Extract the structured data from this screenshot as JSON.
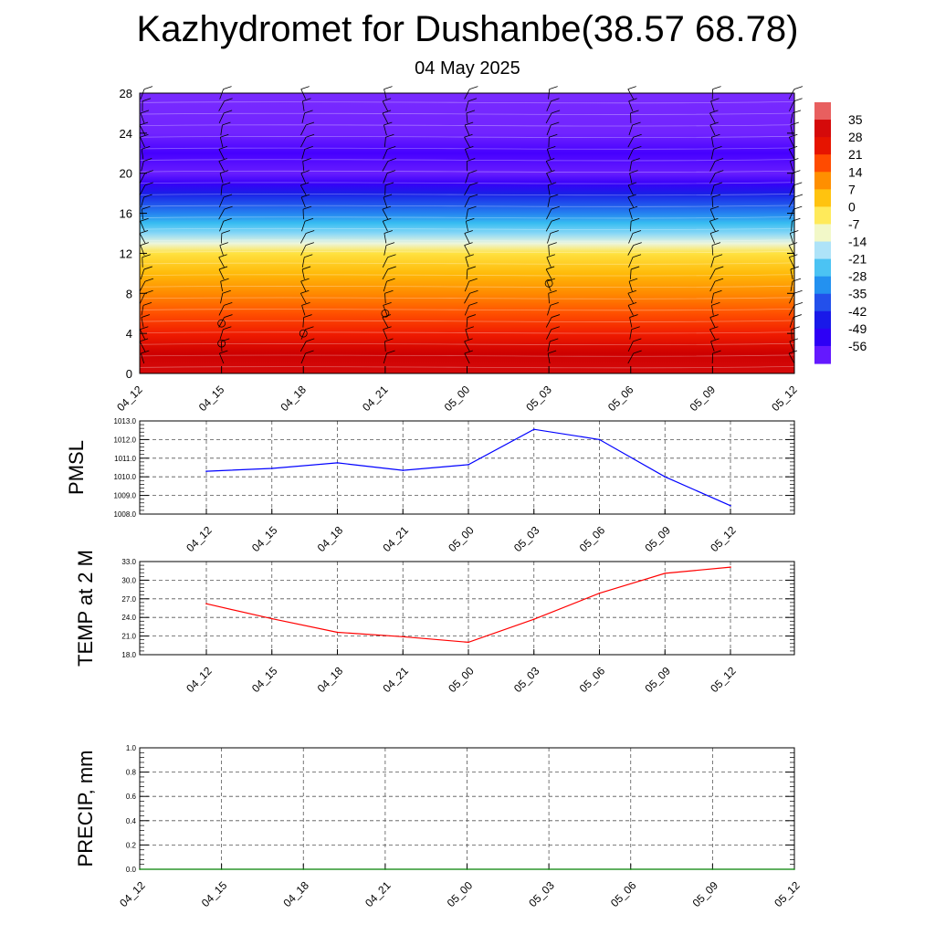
{
  "header": {
    "title": "Kazhydromet for Dushanbe(38.57 68.78)",
    "date": "04 May 2025"
  },
  "chart_data": [
    {
      "type": "heatmap",
      "title": "",
      "xlabel": "",
      "ylabel": "",
      "x_tick_labels": [
        "04_12",
        "04_15",
        "04_18",
        "04_21",
        "05_00",
        "05_03",
        "05_06",
        "05_09",
        "05_12"
      ],
      "y_ticks": [
        0,
        4,
        8,
        12,
        16,
        20,
        24,
        28
      ],
      "ylim": [
        0,
        28
      ],
      "colorbar": {
        "labels": [
          "35",
          "28",
          "21",
          "14",
          "7",
          "0",
          "-7",
          "-14",
          "-21",
          "-28",
          "-35",
          "-42",
          "-49",
          "-56"
        ],
        "min": -63,
        "max": 42
      },
      "temperature_profile": [
        {
          "level": 0,
          "value": 32
        },
        {
          "level": 2,
          "value": 28
        },
        {
          "level": 4,
          "value": 23
        },
        {
          "level": 6,
          "value": 17
        },
        {
          "level": 8,
          "value": 11
        },
        {
          "level": 10,
          "value": 5
        },
        {
          "level": 12,
          "value": -2
        },
        {
          "level": 13,
          "value": -12
        },
        {
          "level": 14,
          "value": -20
        },
        {
          "level": 15,
          "value": -26
        },
        {
          "level": 16,
          "value": -33
        },
        {
          "level": 18,
          "value": -45
        },
        {
          "level": 19,
          "value": -54
        },
        {
          "level": 20,
          "value": -60
        },
        {
          "level": 22,
          "value": -56
        },
        {
          "level": 24,
          "value": -61
        },
        {
          "level": 28,
          "value": -62
        }
      ],
      "grid": false
    },
    {
      "type": "line",
      "ylabel": "PMSL",
      "x": [
        "04_12",
        "04_15",
        "04_18",
        "04_21",
        "05_00",
        "05_03",
        "05_06",
        "05_09",
        "05_12"
      ],
      "series": [
        {
          "values": [
            1010.3,
            1010.45,
            1010.75,
            1010.35,
            1010.65,
            1012.55,
            1012.0,
            1010.0,
            1008.45
          ],
          "color": "#0000ff"
        }
      ],
      "ylim": [
        1008.0,
        1013.0
      ],
      "y_tick_labels": [
        "1008.0",
        "1009.0",
        "1010.0",
        "1011.0",
        "1012.0",
        "1013.0"
      ],
      "grid": true
    },
    {
      "type": "line",
      "ylabel": "TEMP at 2 M",
      "x": [
        "04_12",
        "04_15",
        "04_18",
        "04_21",
        "05_00",
        "05_03",
        "05_06",
        "05_09",
        "05_12"
      ],
      "series": [
        {
          "values": [
            26.2,
            23.8,
            21.6,
            20.9,
            20.0,
            23.7,
            27.9,
            31.1,
            32.1
          ],
          "color": "#ff0000"
        }
      ],
      "ylim": [
        18.0,
        33.0
      ],
      "y_tick_labels": [
        "18.0",
        "21.0",
        "24.0",
        "27.0",
        "30.0",
        "33.0"
      ],
      "grid": true
    },
    {
      "type": "line",
      "ylabel": "PRECIP, mm",
      "x": [
        "04_12",
        "04_15",
        "04_18",
        "04_21",
        "05_00",
        "05_03",
        "05_06",
        "05_09",
        "05_12"
      ],
      "series": [
        {
          "values": [
            0,
            0,
            0,
            0,
            0,
            0,
            0,
            0,
            0
          ],
          "color": "#008000"
        }
      ],
      "ylim": [
        0.0,
        1.0
      ],
      "y_tick_labels": [
        "0.0",
        "0.2",
        "0.4",
        "0.6",
        "0.8",
        "1.0"
      ],
      "grid": true
    }
  ]
}
